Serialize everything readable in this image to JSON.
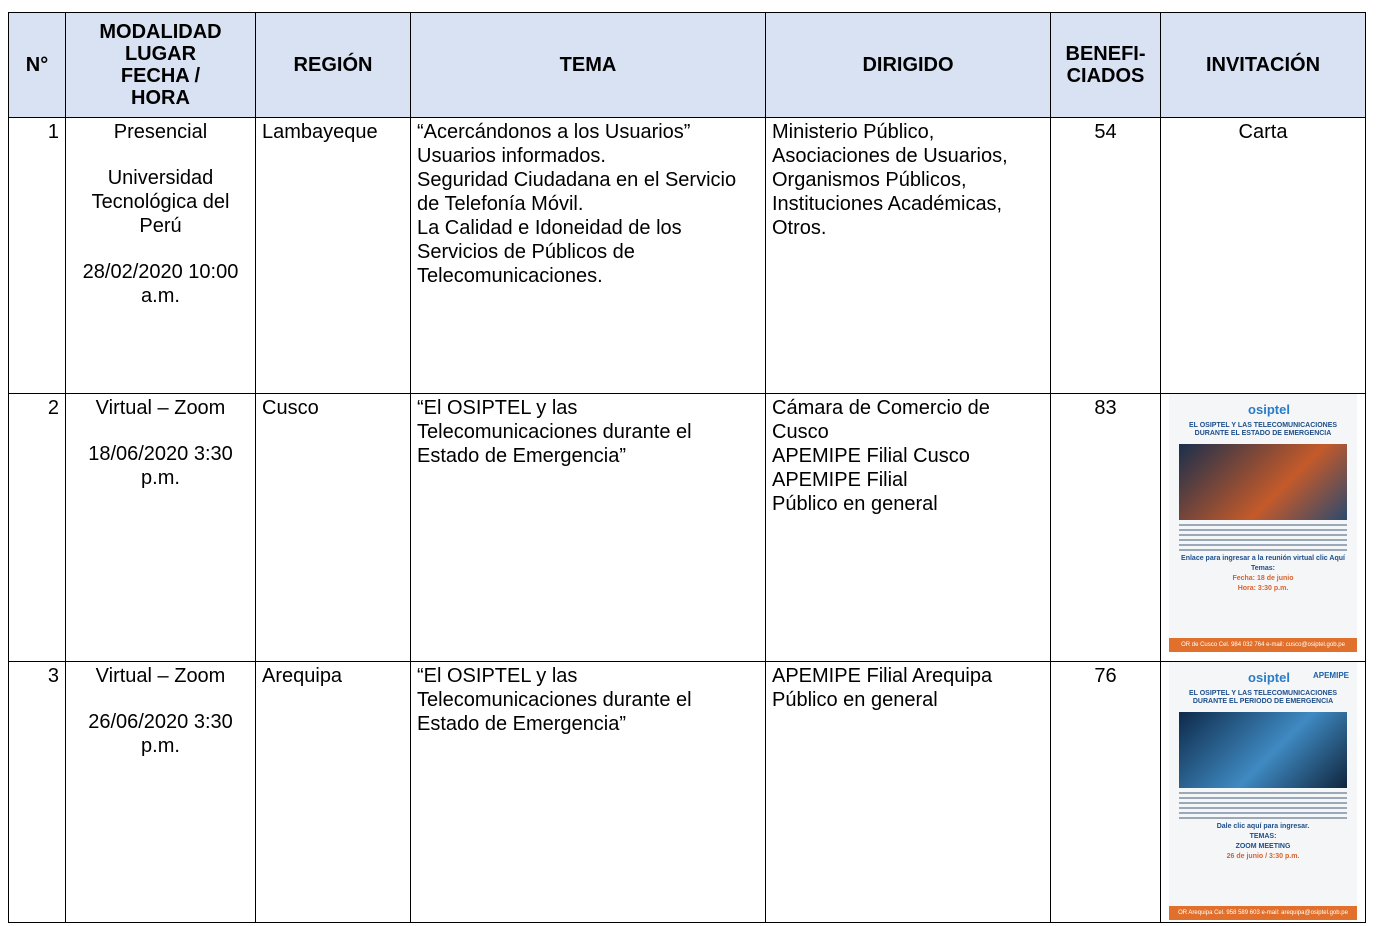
{
  "table": {
    "headers": [
      [
        "N°"
      ],
      [
        "MODALIDAD",
        "LUGAR",
        "FECHA /",
        "HORA"
      ],
      [
        "REGIÓN"
      ],
      [
        "TEMA"
      ],
      [
        "DIRIGIDO"
      ],
      [
        "BENEFI-",
        "CIADOS"
      ],
      [
        "INVITACIÓN"
      ]
    ],
    "rows": [
      {
        "n": "1",
        "modalidad": [
          "Presencial",
          "Universidad Tecnológica del Perú",
          "28/02/2020 10:00 a.m."
        ],
        "region": "Lambayeque",
        "tema": [
          "“Acercándonos a los Usuarios”",
          "Usuarios informados.",
          "Seguridad Ciudadana en el Servicio de Telefonía Móvil.",
          "La Calidad e Idoneidad de los Servicios de Públicos de Telecomunicaciones."
        ],
        "dirigido": [
          "Ministerio Público, Asociaciones de Usuarios, Organismos Públicos, Instituciones Académicas,",
          "Otros."
        ],
        "beneficiados": "54",
        "invitacion": "Carta"
      },
      {
        "n": "2",
        "modalidad": [
          "Virtual – Zoom",
          "18/06/2020 3:30 p.m."
        ],
        "region": "Cusco",
        "tema": [
          "“El OSIPTEL y las Telecomunicaciones durante el Estado de Emergencia”"
        ],
        "dirigido": [
          "Cámara de Comercio de Cusco",
          "APEMIPE Filial Cusco",
          "APEMIPE Filial",
          "Público en general"
        ],
        "beneficiados": "83",
        "invitacion": {
          "logo": "osiptel",
          "title": "EL OSIPTEL Y LAS TELECOMUNICACIONES DURANTE EL ESTADO DE EMERGENCIA",
          "link": "Enlace para ingresar a la reunión virtual clic Aquí",
          "topics": "Temas:",
          "date": "Fecha: 18 de junio",
          "time": "Hora: 3:30 p.m.",
          "footer": "OR de Cusco Cel. 984 032 764 e-mail: cusco@osiptel.gob.pe"
        }
      },
      {
        "n": "3",
        "modalidad": [
          "Virtual – Zoom",
          "26/06/2020 3:30 p.m."
        ],
        "region": "Arequipa",
        "tema": [
          "“El OSIPTEL y las Telecomunicaciones durante el Estado de Emergencia”"
        ],
        "dirigido": [
          "APEMIPE Filial Arequipa",
          "Público en general"
        ],
        "beneficiados": "76",
        "invitacion": {
          "logo": "osiptel",
          "partner": "APEMIPE",
          "title": "EL OSIPTEL Y LAS TELECOMUNICACIONES DURANTE EL PERIODO DE EMERGENCIA",
          "date": "26 de junio / 3:30 p.m.",
          "topics": "TEMAS:",
          "zoom": "ZOOM MEETING",
          "link": "Dale clic aquí para ingresar.",
          "footer": "OR Arequipa Cel. 958 589 603 e-mail: arequipa@osiptel.gob.pe"
        }
      }
    ]
  }
}
